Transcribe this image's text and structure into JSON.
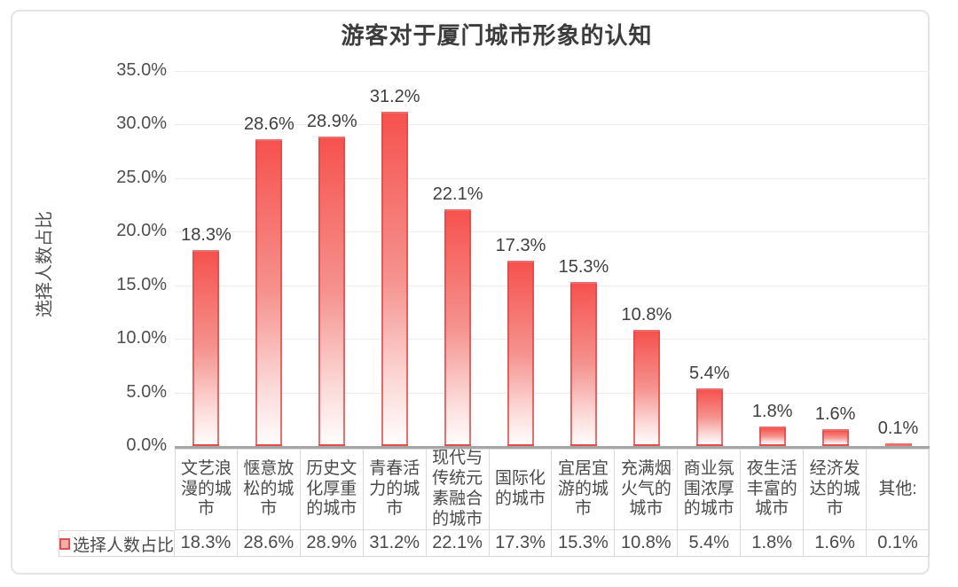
{
  "chart_data": {
    "type": "bar",
    "title": "游客对于厦门城市形象的认知",
    "ylabel": "选择人数占比",
    "series_name": "选择人数占比",
    "categories": [
      "文艺浪漫的城市",
      "惬意放松的城市",
      "历史文化厚重的城市",
      "青春活力的城市",
      "现代与传统元素融合的城市",
      "国际化的城市",
      "宜居宜游的城市",
      "充满烟火气的城市",
      "商业氛围浓厚的城市",
      "夜生活丰富的城市",
      "经济发达的城市",
      "其他:"
    ],
    "values": [
      18.3,
      28.6,
      28.9,
      31.2,
      22.1,
      17.3,
      15.3,
      10.8,
      5.4,
      1.8,
      1.6,
      0.1
    ],
    "data_labels": [
      "18.3%",
      "28.6%",
      "28.9%",
      "31.2%",
      "22.1%",
      "17.3%",
      "15.3%",
      "10.8%",
      "5.4%",
      "1.8%",
      "1.6%",
      "0.1%"
    ],
    "y_tick_labels": [
      "0.0%",
      "5.0%",
      "10.0%",
      "15.0%",
      "20.0%",
      "25.0%",
      "30.0%",
      "35.0%"
    ],
    "ylim": [
      0,
      35
    ],
    "y_step": 5,
    "grid": true,
    "legend_position": "table-bottom-left",
    "colors": {
      "bar_top": "#f6524e",
      "bar_bottom": "#fffdfd",
      "bar_border": "#e04946",
      "gridline": "#ececec",
      "axis_line": "#a6a6a6",
      "text": "#3f3f3f",
      "table_border": "#d9d9d9",
      "legend_fill": "#f2aeac",
      "legend_border": "#dd524f"
    }
  }
}
